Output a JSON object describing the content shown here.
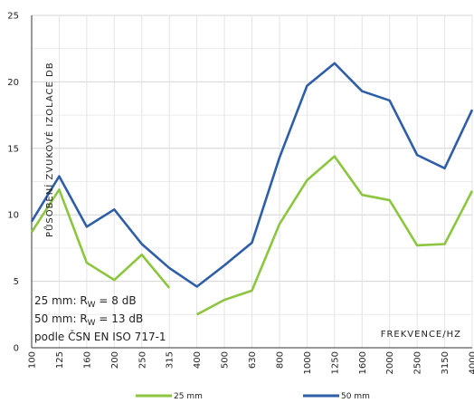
{
  "chart_data": {
    "type": "line",
    "categories": [
      "100",
      "125",
      "160",
      "200",
      "250",
      "315",
      "400",
      "500",
      "630",
      "800",
      "1000",
      "1250",
      "1600",
      "2000",
      "2500",
      "3150",
      "4000"
    ],
    "series": [
      {
        "name": "25 mm",
        "color": "#8cc63f",
        "values": [
          8.7,
          11.9,
          6.4,
          5.1,
          7.0,
          4.5,
          2.5,
          3.6,
          4.3,
          9.3,
          12.6,
          14.4,
          11.5,
          11.1,
          7.7,
          7.8,
          11.8
        ],
        "gaps": [
          5
        ]
      },
      {
        "name": "50 mm",
        "color": "#2e5ea8",
        "values": [
          9.5,
          12.9,
          9.1,
          10.4,
          7.8,
          6.0,
          4.6,
          6.2,
          7.9,
          14.3,
          19.7,
          21.4,
          19.3,
          18.6,
          14.5,
          13.5,
          17.9
        ],
        "gaps": []
      }
    ],
    "ylabel": "PŮSOBENÍ ZVUKOVÉ IZOLACE DB",
    "xlabel": "FREKVENCE/HZ",
    "ylim": [
      0,
      25
    ],
    "yticks": [
      0,
      5,
      10,
      15,
      20,
      25
    ],
    "grid": true,
    "legend": "bottom"
  },
  "annotations": {
    "line1_prefix": "25 mm: R",
    "line1_sub": "W",
    "line1_value": " =   8 dB",
    "line2_prefix": "50 mm: R",
    "line2_sub": "W",
    "line2_value": " = 13 dB",
    "line3": "podle ČSN EN ISO 717-1"
  }
}
